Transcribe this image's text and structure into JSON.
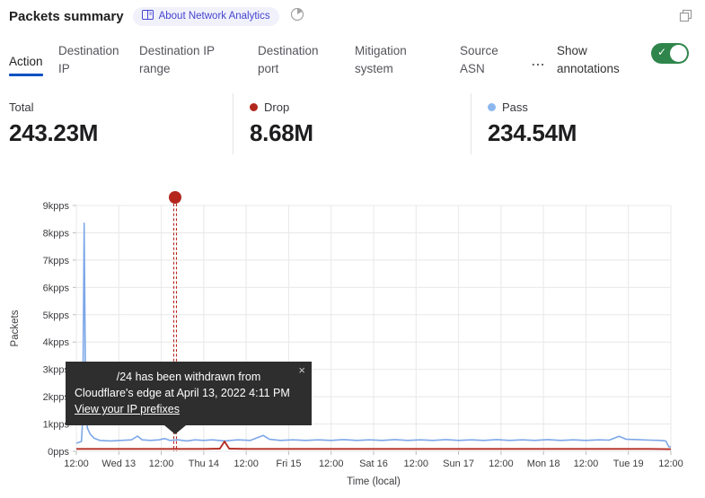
{
  "header": {
    "title": "Packets summary",
    "badge_label": "About Network Analytics",
    "icons": {
      "badge_icon": "book-icon",
      "time_icon": "pie-clock-icon",
      "top_right_icon": "expand-icon"
    }
  },
  "tabs": [
    {
      "label": "Action",
      "active": true
    },
    {
      "label": "Destination IP",
      "active": false
    },
    {
      "label": "Destination IP range",
      "active": false
    },
    {
      "label": "Destination port",
      "active": false
    },
    {
      "label": "Mitigation system",
      "active": false
    },
    {
      "label": "Source ASN",
      "active": false
    }
  ],
  "more_label": "...",
  "annotations_toggle": {
    "label": "Show annotations",
    "on": true,
    "color": "#2f854b"
  },
  "stats": [
    {
      "label": "Total",
      "value": "243.23M",
      "dot_color": null
    },
    {
      "label": "Drop",
      "value": "8.68M",
      "dot_color": "#b2281d"
    },
    {
      "label": "Pass",
      "value": "234.54M",
      "dot_color": "#8cb8ee"
    }
  ],
  "tooltip": {
    "line1": "/24 has been withdrawn from",
    "line2": "Cloudflare's edge at April 13, 2022 4:11 PM",
    "link": "View your IP prefixes",
    "close": "×"
  },
  "chart_data": {
    "type": "line",
    "title": "Packets summary",
    "xlabel": "Time (local)",
    "ylabel": "Packets",
    "unit": "kpps",
    "y_max": 9,
    "grid": true,
    "legend_position": "top-stats-row",
    "x_ticks": [
      "12:00",
      "Wed 13",
      "12:00",
      "Thu 14",
      "12:00",
      "Fri 15",
      "12:00",
      "Sat 16",
      "12:00",
      "Sun 17",
      "12:00",
      "Mon 18",
      "12:00",
      "Tue 19",
      "12:00"
    ],
    "y_ticks": [
      "0pps",
      "1kpps",
      "2kpps",
      "3kpps",
      "4kpps",
      "5kpps",
      "6kpps",
      "7kpps",
      "8kpps",
      "9kpps"
    ],
    "series": [
      {
        "name": "Pass",
        "color": "#7da7e8",
        "total": "234.54M",
        "points": [
          [
            0,
            0.3
          ],
          [
            0.06,
            0.33
          ],
          [
            0.12,
            0.36
          ],
          [
            0.15,
            1.2
          ],
          [
            0.185,
            8.35
          ],
          [
            0.22,
            1.6
          ],
          [
            0.26,
            0.85
          ],
          [
            0.33,
            0.62
          ],
          [
            0.42,
            0.48
          ],
          [
            0.55,
            0.4
          ],
          [
            0.8,
            0.38
          ],
          [
            1.05,
            0.4
          ],
          [
            1.3,
            0.42
          ],
          [
            1.44,
            0.56
          ],
          [
            1.55,
            0.42
          ],
          [
            1.75,
            0.4
          ],
          [
            1.95,
            0.42
          ],
          [
            2.08,
            0.47
          ],
          [
            2.2,
            0.4
          ],
          [
            2.4,
            0.42
          ],
          [
            2.6,
            0.38
          ],
          [
            2.8,
            0.42
          ],
          [
            3.0,
            0.4
          ],
          [
            3.2,
            0.42
          ],
          [
            3.5,
            0.38
          ],
          [
            3.8,
            0.42
          ],
          [
            4.1,
            0.4
          ],
          [
            4.4,
            0.58
          ],
          [
            4.55,
            0.44
          ],
          [
            4.8,
            0.4
          ],
          [
            5.1,
            0.42
          ],
          [
            5.4,
            0.4
          ],
          [
            5.7,
            0.42
          ],
          [
            6.0,
            0.4
          ],
          [
            6.3,
            0.43
          ],
          [
            6.6,
            0.4
          ],
          [
            6.9,
            0.42
          ],
          [
            7.2,
            0.4
          ],
          [
            7.5,
            0.43
          ],
          [
            7.8,
            0.4
          ],
          [
            8.1,
            0.42
          ],
          [
            8.4,
            0.4
          ],
          [
            8.7,
            0.43
          ],
          [
            9.0,
            0.4
          ],
          [
            9.3,
            0.42
          ],
          [
            9.6,
            0.4
          ],
          [
            9.9,
            0.43
          ],
          [
            10.2,
            0.4
          ],
          [
            10.5,
            0.42
          ],
          [
            10.8,
            0.4
          ],
          [
            11.1,
            0.43
          ],
          [
            11.4,
            0.4
          ],
          [
            11.7,
            0.42
          ],
          [
            12.0,
            0.4
          ],
          [
            12.3,
            0.42
          ],
          [
            12.55,
            0.41
          ],
          [
            12.78,
            0.55
          ],
          [
            12.95,
            0.44
          ],
          [
            13.2,
            0.43
          ],
          [
            13.5,
            0.41
          ],
          [
            13.75,
            0.4
          ],
          [
            13.88,
            0.38
          ],
          [
            13.95,
            0.17
          ],
          [
            14,
            0.16
          ]
        ]
      },
      {
        "name": "Drop",
        "color": "#b32d22",
        "total": "8.68M",
        "points": [
          [
            0,
            0.09
          ],
          [
            0.5,
            0.09
          ],
          [
            1,
            0.09
          ],
          [
            1.5,
            0.09
          ],
          [
            2,
            0.09
          ],
          [
            2.5,
            0.09
          ],
          [
            3,
            0.09
          ],
          [
            3.38,
            0.1
          ],
          [
            3.49,
            0.36
          ],
          [
            3.6,
            0.1
          ],
          [
            4,
            0.09
          ],
          [
            4.5,
            0.09
          ],
          [
            5,
            0.09
          ],
          [
            5.5,
            0.09
          ],
          [
            6,
            0.09
          ],
          [
            6.5,
            0.09
          ],
          [
            7,
            0.09
          ],
          [
            7.5,
            0.09
          ],
          [
            8,
            0.09
          ],
          [
            8.5,
            0.09
          ],
          [
            9,
            0.09
          ],
          [
            9.5,
            0.09
          ],
          [
            10,
            0.09
          ],
          [
            10.5,
            0.09
          ],
          [
            11,
            0.09
          ],
          [
            11.5,
            0.09
          ],
          [
            12,
            0.09
          ],
          [
            12.5,
            0.09
          ],
          [
            13,
            0.09
          ],
          [
            13.5,
            0.09
          ],
          [
            13.95,
            0.08
          ],
          [
            14,
            0.08
          ]
        ]
      }
    ],
    "annotation": {
      "t": 2.326,
      "time": "April 13, 2022 4:11 PM",
      "color": "#b5261c",
      "style": "double-dashed-vertical-line-with-dot"
    }
  }
}
